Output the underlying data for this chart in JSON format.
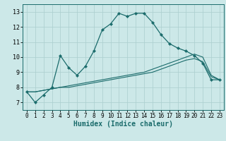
{
  "xlabel": "Humidex (Indice chaleur)",
  "background_color": "#cce8e8",
  "line_color": "#1a6b6b",
  "grid_color": "#aacece",
  "xlim": [
    -0.5,
    23.5
  ],
  "ylim": [
    6.5,
    13.5
  ],
  "xticks": [
    0,
    1,
    2,
    3,
    4,
    5,
    6,
    7,
    8,
    9,
    10,
    11,
    12,
    13,
    14,
    15,
    16,
    17,
    18,
    19,
    20,
    21,
    22,
    23
  ],
  "yticks": [
    7,
    8,
    9,
    10,
    11,
    12,
    13
  ],
  "line1_x": [
    0,
    1,
    2,
    3,
    4,
    5,
    6,
    7,
    8,
    9,
    10,
    11,
    12,
    13,
    14,
    15,
    16,
    17,
    18,
    19,
    20,
    21,
    22,
    23
  ],
  "line1_y": [
    7.7,
    7.0,
    7.5,
    8.0,
    10.1,
    9.3,
    8.8,
    9.4,
    10.4,
    11.8,
    12.2,
    12.9,
    12.7,
    12.9,
    12.9,
    12.3,
    11.5,
    10.9,
    10.6,
    10.4,
    10.1,
    9.6,
    8.5,
    8.5
  ],
  "line2_x": [
    0,
    1,
    2,
    3,
    4,
    5,
    6,
    7,
    8,
    9,
    10,
    11,
    12,
    13,
    14,
    15,
    16,
    17,
    18,
    19,
    20,
    21,
    22,
    23
  ],
  "line2_y": [
    7.7,
    7.7,
    7.8,
    7.9,
    8.0,
    8.1,
    8.2,
    8.3,
    8.4,
    8.5,
    8.6,
    8.7,
    8.8,
    8.9,
    9.0,
    9.2,
    9.4,
    9.6,
    9.8,
    10.0,
    10.2,
    10.0,
    8.8,
    8.5
  ],
  "line3_x": [
    0,
    1,
    2,
    3,
    4,
    5,
    6,
    7,
    8,
    9,
    10,
    11,
    12,
    13,
    14,
    15,
    16,
    17,
    18,
    19,
    20,
    21,
    22,
    23
  ],
  "line3_y": [
    7.7,
    7.7,
    7.8,
    7.9,
    8.0,
    8.0,
    8.1,
    8.2,
    8.3,
    8.4,
    8.5,
    8.6,
    8.7,
    8.8,
    8.9,
    9.0,
    9.2,
    9.4,
    9.6,
    9.8,
    9.9,
    9.7,
    8.7,
    8.5
  ],
  "xlabel_fontsize": 7,
  "tick_fontsize": 5.5,
  "ytick_fontsize": 6
}
